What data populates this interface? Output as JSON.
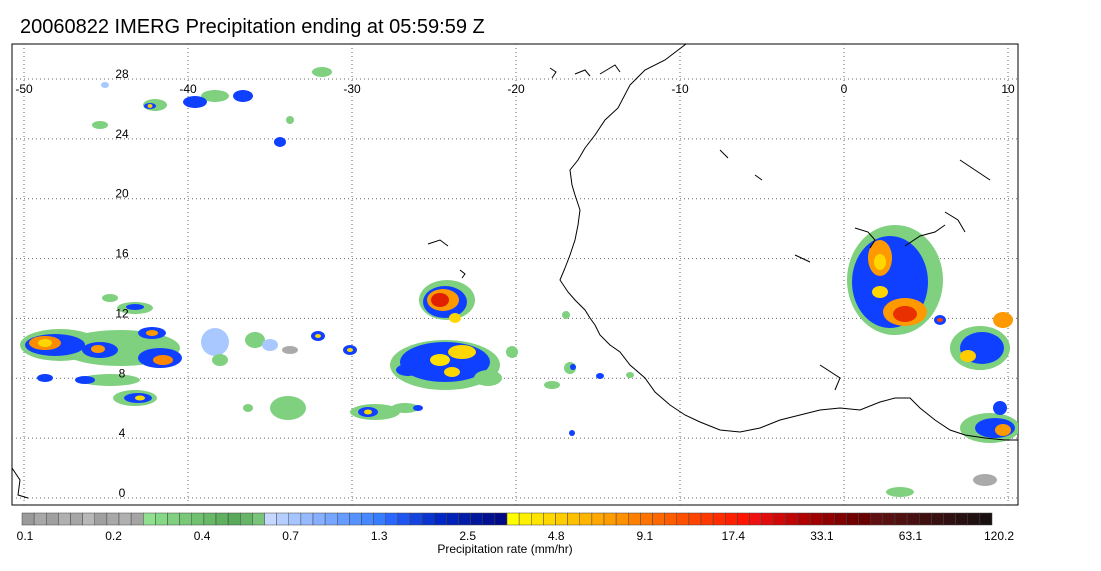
{
  "title": "20060822 IMERG Precipitation ending at 05:59:59 Z",
  "map": {
    "lon_range": [
      -50,
      10
    ],
    "lat_range": [
      -1,
      28
    ],
    "lon_ticks": [
      "-50",
      "-40",
      "-30",
      "-20",
      "-10",
      "0",
      "10"
    ],
    "lat_ticks": [
      "28",
      "24",
      "20",
      "16",
      "12",
      "8",
      "4",
      "0"
    ],
    "grid": "dotted"
  },
  "colorbar": {
    "label": "Precipitation rate (mm/hr)",
    "tick_labels": [
      "0.1",
      "0.2",
      "0.4",
      "0.7",
      "1.3",
      "2.5",
      "4.8",
      "9.1",
      "17.4",
      "33.1",
      "63.1",
      "120.2"
    ],
    "colors": [
      "#9a9a9a",
      "#a8a8a8",
      "#a0a0a0",
      "#b0b0b0",
      "#a6a6a6",
      "#b8b8b8",
      "#a0a0a0",
      "#a8a8a8",
      "#b0b0b0",
      "#a4a4a4",
      "#90e090",
      "#86d886",
      "#80d080",
      "#78c878",
      "#70c070",
      "#68b868",
      "#60b060",
      "#5aa85a",
      "#66b466",
      "#78c478",
      "#c6d8ff",
      "#b6ceff",
      "#a6c4ff",
      "#96baff",
      "#86b0ff",
      "#76a6ff",
      "#669cff",
      "#5692ff",
      "#4688ff",
      "#367eff",
      "#2a66ff",
      "#1e54f0",
      "#1444e0",
      "#0a34d0",
      "#0026c4",
      "#0022b8",
      "#001ca8",
      "#00169c",
      "#001090",
      "#000a84",
      "#ffff00",
      "#fff000",
      "#ffe400",
      "#ffd800",
      "#ffcc00",
      "#ffc000",
      "#ffb400",
      "#ffa800",
      "#ff9c00",
      "#ff9000",
      "#ff8000",
      "#ff7400",
      "#ff6800",
      "#ff5c00",
      "#ff5000",
      "#ff4400",
      "#ff3800",
      "#ff2c00",
      "#ff2000",
      "#ff1400",
      "#f01010",
      "#e00c0c",
      "#d00808",
      "#c00404",
      "#b00000",
      "#a00000",
      "#900000",
      "#800000",
      "#700000",
      "#680000",
      "#601010",
      "#581010",
      "#501010",
      "#481010",
      "#401010",
      "#381010",
      "#301010",
      "#281010",
      "#201010",
      "#181010"
    ]
  }
}
